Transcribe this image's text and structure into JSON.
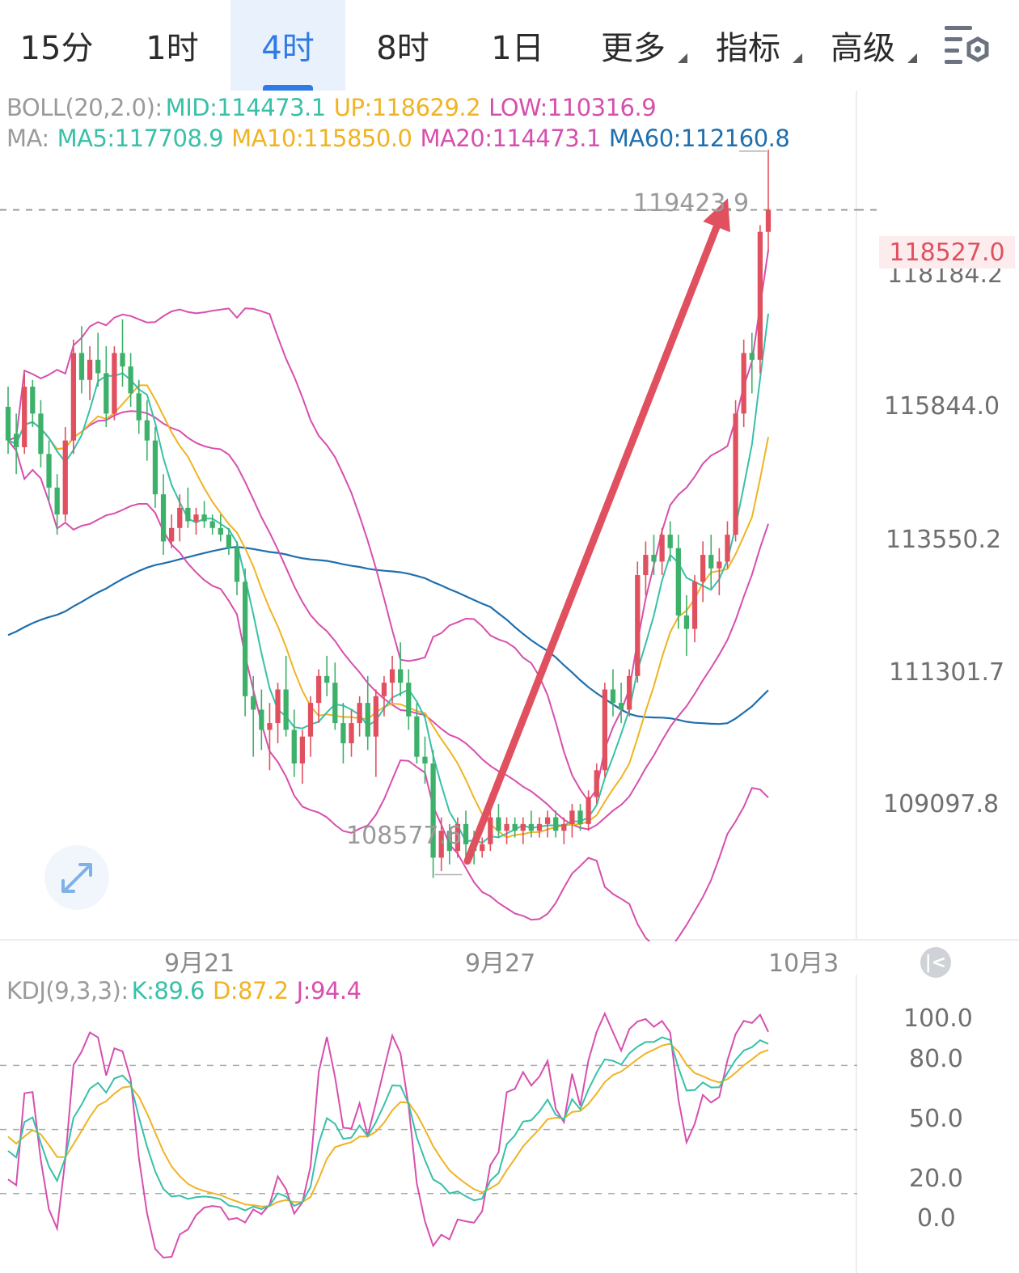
{
  "tabs": [
    {
      "label": "15分"
    },
    {
      "label": "1时"
    },
    {
      "label": "4时",
      "active": true
    },
    {
      "label": "8时"
    },
    {
      "label": "1日"
    },
    {
      "label": "更多",
      "dropdown": true
    },
    {
      "label": "指标",
      "dropdown": true
    },
    {
      "label": "高级",
      "dropdown": true
    }
  ],
  "settings_icon": "chart-settings-icon",
  "boll_legend": {
    "name": "BOLL(20,2.0):",
    "mid": "MID:114473.1",
    "up": "UP:118629.2",
    "low": "LOW:110316.9"
  },
  "ma_legend": {
    "name": "MA:",
    "ma5": "MA5:117708.9",
    "ma10": "MA10:115850.0",
    "ma20": "MA20:114473.1",
    "ma60": "MA60:112160.8"
  },
  "kdj_legend": {
    "name": "KDJ(9,3,3):",
    "k": "K:89.6",
    "d": "D:87.2",
    "j": "J:94.4"
  },
  "price_axis": [
    "118184.2",
    "115844.0",
    "113550.2",
    "111301.7",
    "109097.8"
  ],
  "current_price": "118527.0",
  "high_label": "119423.9",
  "low_label": "108577.6",
  "dates": [
    "9月21",
    "9月27",
    "10月3"
  ],
  "kdj_axis": [
    "100.0",
    "80.0",
    "50.0",
    "20.0",
    "0.0"
  ],
  "colors": {
    "up": "#e0505f",
    "down": "#3db06a",
    "ma5": "#38c0a8",
    "ma10": "#f0b324",
    "ma20": "#d74fae",
    "ma60": "#1f6fae",
    "accent": "#2f7be6",
    "arrow": "#e0505f"
  },
  "chart_data": {
    "type": "candlestick",
    "timeframe": "4时",
    "ylim": [
      107800,
      120300
    ],
    "candles": [
      [
        115600,
        115900,
        114900,
        115100
      ],
      [
        115200,
        115500,
        114600,
        115000
      ],
      [
        115000,
        116100,
        114900,
        115900
      ],
      [
        115900,
        116000,
        115300,
        115500
      ],
      [
        115500,
        115700,
        114700,
        114900
      ],
      [
        114900,
        115100,
        114200,
        114400
      ],
      [
        114400,
        114600,
        113700,
        114000
      ],
      [
        114000,
        115300,
        113900,
        115100
      ],
      [
        115100,
        116600,
        114900,
        116400
      ],
      [
        116400,
        116800,
        115800,
        116000
      ],
      [
        116000,
        116500,
        115700,
        116300
      ],
      [
        116300,
        116700,
        115900,
        116100
      ],
      [
        116100,
        116500,
        115300,
        115500
      ],
      [
        115500,
        116500,
        115400,
        116400
      ],
      [
        116400,
        116900,
        115900,
        116200
      ],
      [
        116200,
        116400,
        115600,
        115800
      ],
      [
        115800,
        116000,
        115200,
        115400
      ],
      [
        115400,
        115700,
        114800,
        115100
      ],
      [
        115100,
        115300,
        114100,
        114300
      ],
      [
        114300,
        114600,
        113400,
        113600
      ],
      [
        113600,
        114000,
        113500,
        113800
      ],
      [
        113800,
        114300,
        113600,
        114100
      ],
      [
        114100,
        114400,
        113800,
        113900
      ],
      [
        113900,
        114100,
        113700,
        114000
      ],
      [
        114000,
        114200,
        113800,
        113900
      ],
      [
        113900,
        114000,
        113700,
        113800
      ],
      [
        113800,
        114000,
        113600,
        113700
      ],
      [
        113700,
        113800,
        113400,
        113500
      ],
      [
        113500,
        113600,
        112800,
        113000
      ],
      [
        113000,
        113200,
        111000,
        111300
      ],
      [
        111300,
        111600,
        110400,
        111100
      ],
      [
        111100,
        111400,
        110500,
        110800
      ],
      [
        110800,
        111200,
        110200,
        110900
      ],
      [
        110900,
        111500,
        110600,
        111400
      ],
      [
        111400,
        111900,
        110700,
        110800
      ],
      [
        110800,
        111100,
        110100,
        110300
      ],
      [
        110300,
        110800,
        110000,
        110700
      ],
      [
        110700,
        111300,
        110400,
        111200
      ],
      [
        111200,
        111700,
        110900,
        111600
      ],
      [
        111600,
        111900,
        111300,
        111500
      ],
      [
        111500,
        111800,
        110800,
        110900
      ],
      [
        110900,
        111200,
        110300,
        110600
      ],
      [
        110600,
        111100,
        110400,
        110900
      ],
      [
        110900,
        111300,
        110700,
        111200
      ],
      [
        111200,
        111600,
        110500,
        110700
      ],
      [
        110700,
        111400,
        110100,
        111300
      ],
      [
        111300,
        111600,
        111000,
        111500
      ],
      [
        111500,
        111900,
        111200,
        111700
      ],
      [
        111700,
        112100,
        111300,
        111500
      ],
      [
        111500,
        111700,
        110800,
        111000
      ],
      [
        111000,
        111200,
        110300,
        110400
      ],
      [
        110400,
        110700,
        110000,
        110300
      ],
      [
        110300,
        110500,
        108600,
        108900
      ],
      [
        108900,
        109500,
        108700,
        109300
      ],
      [
        109300,
        109400,
        108800,
        109000
      ],
      [
        109000,
        109500,
        108900,
        109400
      ],
      [
        109400,
        109600,
        108900,
        109100
      ],
      [
        109100,
        109300,
        108800,
        109000
      ],
      [
        109000,
        109200,
        108900,
        109100
      ],
      [
        109100,
        109700,
        109000,
        109500
      ],
      [
        109500,
        109700,
        109200,
        109300
      ],
      [
        109300,
        109500,
        109100,
        109400
      ],
      [
        109400,
        109500,
        109200,
        109300
      ],
      [
        109300,
        109500,
        109100,
        109400
      ],
      [
        109400,
        109600,
        109200,
        109300
      ],
      [
        109300,
        109500,
        109200,
        109400
      ],
      [
        109400,
        109600,
        109200,
        109500
      ],
      [
        109500,
        109600,
        109200,
        109300
      ],
      [
        109300,
        109500,
        109100,
        109400
      ],
      [
        109400,
        109700,
        109200,
        109600
      ],
      [
        109600,
        109700,
        109300,
        109400
      ],
      [
        109400,
        109900,
        109300,
        109800
      ],
      [
        109800,
        110300,
        109700,
        110200
      ],
      [
        110200,
        111500,
        110100,
        111400
      ],
      [
        111400,
        111700,
        111000,
        111200
      ],
      [
        111200,
        111500,
        110900,
        111100
      ],
      [
        111100,
        111700,
        111000,
        111600
      ],
      [
        111600,
        113300,
        111500,
        113100
      ],
      [
        113100,
        113600,
        112800,
        113400
      ],
      [
        113400,
        113700,
        113100,
        113300
      ],
      [
        113300,
        113800,
        113100,
        113700
      ],
      [
        113700,
        113900,
        113300,
        113500
      ],
      [
        113500,
        113700,
        112300,
        112500
      ],
      [
        112500,
        112800,
        111900,
        112300
      ],
      [
        112300,
        113100,
        112100,
        113000
      ],
      [
        113000,
        113600,
        112700,
        113400
      ],
      [
        113400,
        113700,
        112900,
        113200
      ],
      [
        113200,
        113500,
        112800,
        113300
      ],
      [
        113300,
        113900,
        113200,
        113700
      ],
      [
        113700,
        115700,
        113600,
        115500
      ],
      [
        115500,
        116600,
        115300,
        116400
      ],
      [
        116400,
        116700,
        115800,
        116300
      ],
      [
        116300,
        118300,
        116100,
        118200
      ],
      [
        118200,
        119423.9,
        117900,
        118527
      ]
    ],
    "ma_series": [
      "MA5",
      "MA10",
      "MA20",
      "MA60"
    ],
    "boll": {
      "mid": 114473.1,
      "up": 118629.2,
      "low": 110316.9
    },
    "kdj": {
      "k": 89.6,
      "d": 87.2,
      "j": 94.4,
      "ylim": [
        -10,
        115
      ],
      "levels": [
        80,
        50,
        20
      ]
    }
  }
}
